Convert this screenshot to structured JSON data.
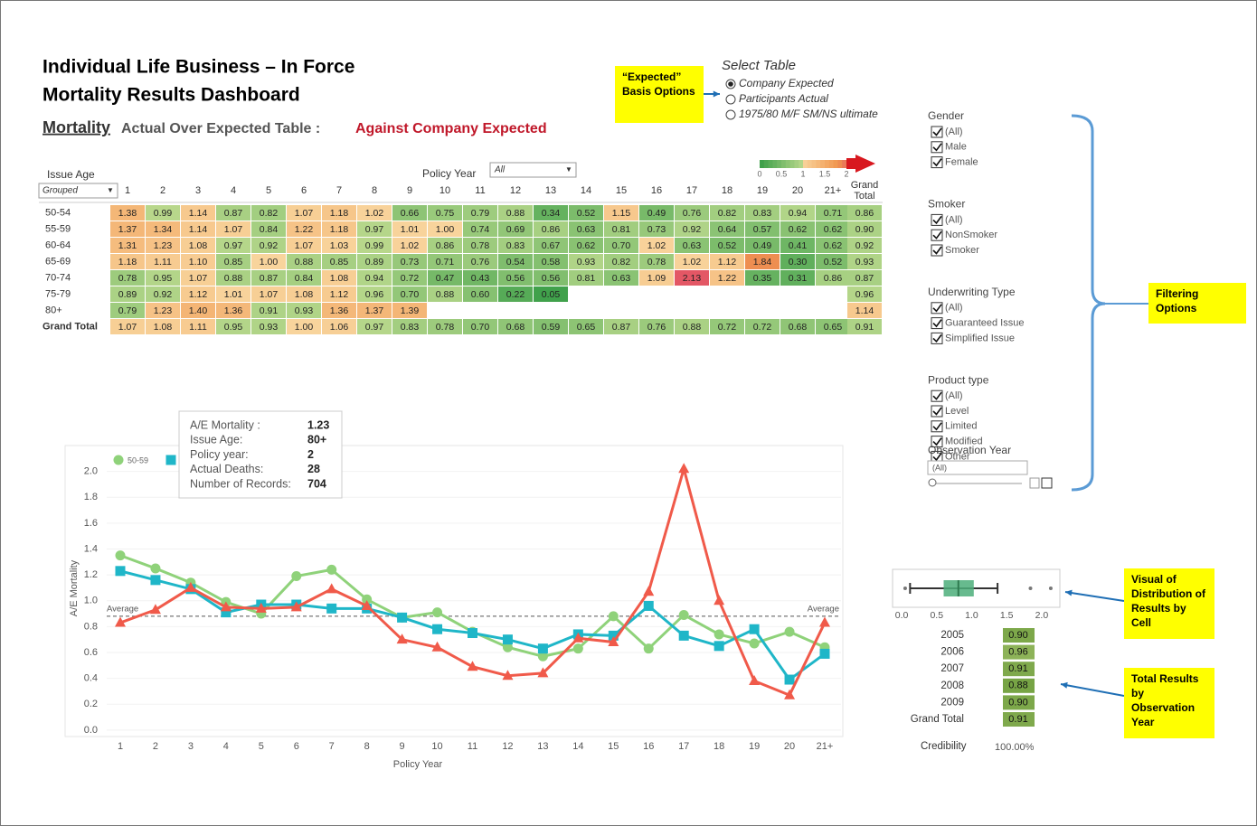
{
  "header": {
    "title_line1": "Individual Life Business – In Force",
    "title_line2": "Mortality Results Dashboard",
    "subtitle_link": "Mortality",
    "subtitle_text": "Actual Over Expected Table :",
    "subtitle_basis": "Against Company Expected"
  },
  "select_table": {
    "title": "Select Table",
    "options": [
      "Company Expected",
      "Participants Actual",
      "1975/80 M/F SM/NS ultimate"
    ],
    "selected": 0
  },
  "heatmap": {
    "row_header": "Issue Age",
    "row_dropdown": "Grouped",
    "column_header": "Policy Year",
    "column_dropdown": "All",
    "legend_ticks": [
      0,
      0.5,
      1,
      1.5,
      2
    ],
    "columns": [
      "1",
      "2",
      "3",
      "4",
      "5",
      "6",
      "7",
      "8",
      "9",
      "10",
      "11",
      "12",
      "13",
      "14",
      "15",
      "16",
      "17",
      "18",
      "19",
      "20",
      "21+",
      "Grand Total"
    ],
    "rows": [
      {
        "label": "50-54",
        "cells": [
          "1.38",
          "0.99",
          "1.14",
          "0.87",
          "0.82",
          "1.07",
          "1.18",
          "1.02",
          "0.66",
          "0.75",
          "0.79",
          "0.88",
          "0.34",
          "0.52",
          "1.15",
          "0.49",
          "0.76",
          "0.82",
          "0.83",
          "0.94",
          "0.71",
          "0.86"
        ]
      },
      {
        "label": "55-59",
        "cells": [
          "1.37",
          "1.34",
          "1.14",
          "1.07",
          "0.84",
          "1.22",
          "1.18",
          "0.97",
          "1.01",
          "1.00",
          "0.74",
          "0.69",
          "0.86",
          "0.63",
          "0.81",
          "0.73",
          "0.92",
          "0.64",
          "0.57",
          "0.62",
          "0.62",
          "0.90"
        ]
      },
      {
        "label": "60-64",
        "cells": [
          "1.31",
          "1.23",
          "1.08",
          "0.97",
          "0.92",
          "1.07",
          "1.03",
          "0.99",
          "1.02",
          "0.86",
          "0.78",
          "0.83",
          "0.67",
          "0.62",
          "0.70",
          "1.02",
          "0.63",
          "0.52",
          "0.49",
          "0.41",
          "0.62",
          "0.92"
        ]
      },
      {
        "label": "65-69",
        "cells": [
          "1.18",
          "1.11",
          "1.10",
          "0.85",
          "1.00",
          "0.88",
          "0.85",
          "0.89",
          "0.73",
          "0.71",
          "0.76",
          "0.54",
          "0.58",
          "0.93",
          "0.82",
          "0.78",
          "1.02",
          "1.12",
          "1.84",
          "0.30",
          "0.52",
          "0.93"
        ]
      },
      {
        "label": "70-74",
        "cells": [
          "0.78",
          "0.95",
          "1.07",
          "0.88",
          "0.87",
          "0.84",
          "1.08",
          "0.94",
          "0.72",
          "0.47",
          "0.43",
          "0.56",
          "0.56",
          "0.81",
          "0.63",
          "1.09",
          "2.13",
          "1.22",
          "0.35",
          "0.31",
          "0.86",
          "0.87"
        ]
      },
      {
        "label": "75-79",
        "cells": [
          "0.89",
          "0.92",
          "1.12",
          "1.01",
          "1.07",
          "1.08",
          "1.12",
          "0.96",
          "0.70",
          "0.88",
          "0.60",
          "0.22",
          "0.05",
          null,
          null,
          null,
          null,
          null,
          null,
          null,
          null,
          "0.96"
        ]
      },
      {
        "label": "80+",
        "cells": [
          "0.79",
          "1.23",
          "1.40",
          "1.36",
          "0.91",
          "0.93",
          "1.36",
          "1.37",
          "1.39",
          null,
          null,
          null,
          null,
          null,
          null,
          null,
          null,
          null,
          null,
          null,
          null,
          "1.14"
        ]
      },
      {
        "label": "Grand Total",
        "cells": [
          "1.07",
          "1.08",
          "1.11",
          "0.95",
          "0.93",
          "1.00",
          "1.06",
          "0.97",
          "0.83",
          "0.78",
          "0.70",
          "0.68",
          "0.59",
          "0.65",
          "0.87",
          "0.76",
          "0.88",
          "0.72",
          "0.72",
          "0.68",
          "0.65",
          "0.91"
        ]
      }
    ]
  },
  "chart_data": {
    "type": "line",
    "y_label": "A/E Mortality",
    "x_label": "Policy Year",
    "categories": [
      "1",
      "2",
      "3",
      "4",
      "5",
      "6",
      "7",
      "8",
      "9",
      "10",
      "11",
      "12",
      "13",
      "14",
      "15",
      "16",
      "17",
      "18",
      "19",
      "20",
      "21+"
    ],
    "series": [
      {
        "name": "50-59",
        "color": "#8fd27a",
        "marker": "circle",
        "values": [
          1.35,
          1.25,
          1.14,
          0.99,
          0.9,
          1.19,
          1.24,
          1.01,
          0.87,
          0.91,
          0.76,
          0.64,
          0.57,
          0.63,
          0.88,
          0.63,
          0.89,
          0.74,
          0.67,
          0.76,
          0.64
        ]
      },
      {
        "color": "#1fb6c8",
        "marker": "square",
        "values": [
          1.23,
          1.16,
          1.09,
          0.91,
          0.97,
          0.97,
          0.94,
          0.94,
          0.87,
          0.78,
          0.75,
          0.7,
          0.63,
          0.74,
          0.73,
          0.96,
          0.73,
          0.65,
          0.78,
          0.39,
          0.59
        ]
      },
      {
        "color": "#f05a4a",
        "marker": "triangle",
        "values": [
          0.83,
          0.93,
          1.1,
          0.95,
          0.94,
          0.95,
          1.09,
          0.96,
          0.7,
          0.64,
          0.49,
          0.42,
          0.44,
          0.71,
          0.68,
          1.07,
          2.02,
          1.0,
          0.38,
          0.27,
          0.83
        ]
      }
    ],
    "ylim": [
      -0.05,
      2.2
    ],
    "yticks": [
      {
        "value": 0,
        "label": "0.0"
      },
      0.2,
      0.4,
      0.6,
      0.8,
      {
        "value": 1,
        "label": "1.0"
      },
      1.2,
      1.4,
      1.6,
      1.8,
      {
        "value": 2,
        "label": "2.0"
      }
    ],
    "reference_line": {
      "value": 0.88,
      "label_left": "Average",
      "label_right": "Average"
    }
  },
  "tooltip": {
    "rows": [
      {
        "label": "A/E Mortality :",
        "value": "1.23"
      },
      {
        "label": "Issue Age:",
        "value": "80+"
      },
      {
        "label": "Policy year:",
        "value": "2"
      },
      {
        "label": "Actual Deaths:",
        "value": "28"
      },
      {
        "label": "Number of Records:",
        "value": "704"
      }
    ]
  },
  "filters": {
    "groups": [
      {
        "title": "Gender",
        "options": [
          "(All)",
          "Male",
          "Female"
        ]
      },
      {
        "title": "Smoker",
        "options": [
          "(All)",
          "NonSmoker",
          "Smoker"
        ]
      },
      {
        "title": "Underwriting Type",
        "options": [
          "(All)",
          "Guaranteed Issue",
          "Simplified Issue"
        ]
      },
      {
        "title": "Product type",
        "options": [
          "(All)",
          "Level",
          "Limited",
          "Modified",
          "Other"
        ]
      }
    ],
    "observation_year": {
      "title": "Observation Year",
      "dropdown": "(All)"
    }
  },
  "boxplot": {
    "xlim": [
      -0.13,
      2.26
    ],
    "xticks": [
      {
        "value": 0,
        "label": "0.0"
      },
      0.5,
      {
        "value": 1,
        "label": "1.0"
      },
      1.5,
      {
        "value": 2,
        "label": "2.0"
      }
    ],
    "whisker_low": 0.12,
    "q1": 0.6,
    "median": 0.81,
    "q3": 1.03,
    "whisker_high": 1.37,
    "outliers": [
      0.05,
      1.84,
      2.13
    ]
  },
  "year_table": {
    "rows": [
      {
        "label": "2005",
        "value": "0.90"
      },
      {
        "label": "2006",
        "value": "0.96"
      },
      {
        "label": "2007",
        "value": "0.91"
      },
      {
        "label": "2008",
        "value": "0.88"
      },
      {
        "label": "2009",
        "value": "0.90"
      },
      {
        "label": "Grand Total",
        "value": "0.91"
      }
    ],
    "credibility_label": "Credibility",
    "credibility_value": "100.00%"
  },
  "callouts": {
    "basis": "“Expected” Basis Options",
    "filtering": "Filtering Options",
    "distribution": "Visual of Distribution of Results by Cell",
    "totals": "Total Results by Observation Year"
  }
}
